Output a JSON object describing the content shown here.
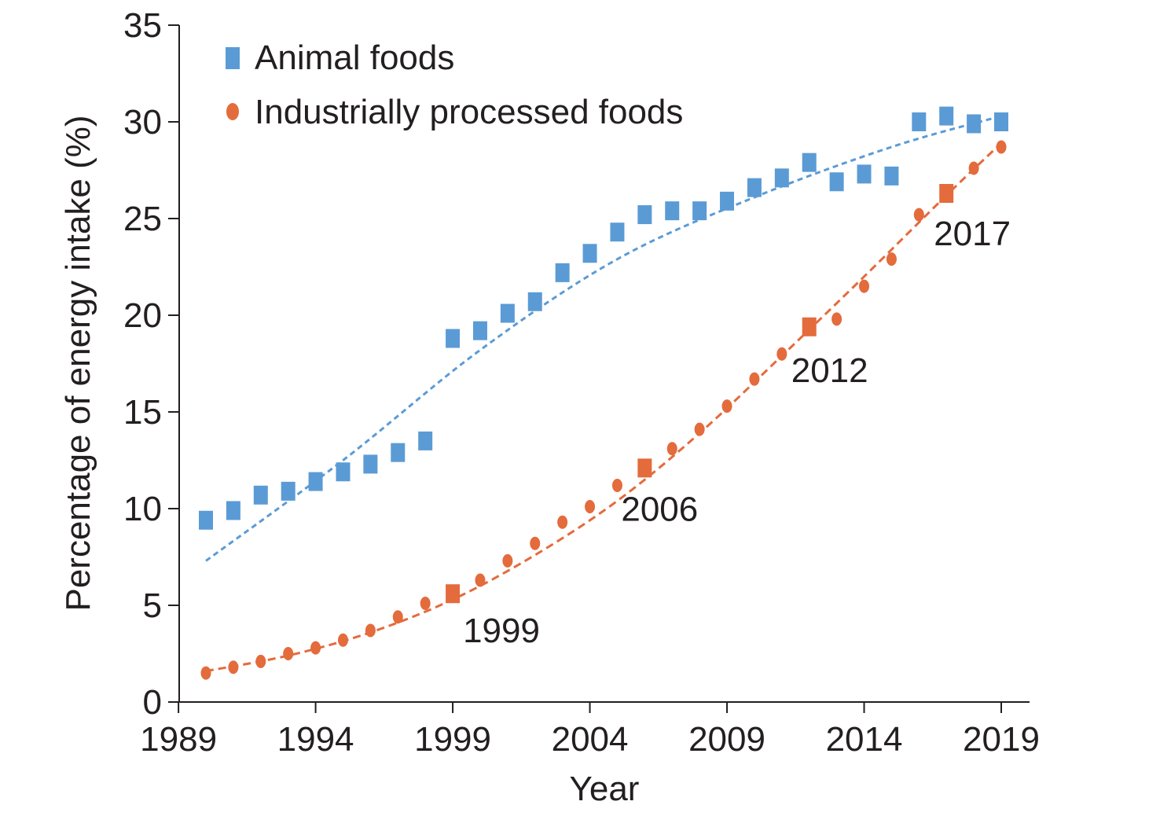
{
  "chart_data": {
    "type": "scatter",
    "xlabel": "Year",
    "ylabel": "Percentage of energy intake (%)",
    "xlim": [
      1989,
      2020
    ],
    "ylim": [
      0,
      35
    ],
    "x_ticks": [
      1989,
      1994,
      1999,
      2004,
      2009,
      2014,
      2019
    ],
    "y_ticks": [
      0,
      5,
      10,
      15,
      20,
      25,
      30,
      35
    ],
    "grid": false,
    "legend_position": "top-left",
    "series": [
      {
        "name": "Animal foods",
        "marker": "square",
        "color": "#5b9bd5",
        "x": [
          1990,
          1991,
          1992,
          1993,
          1994,
          1995,
          1996,
          1997,
          1998,
          1999,
          2000,
          2001,
          2002,
          2003,
          2004,
          2005,
          2006,
          2007,
          2008,
          2009,
          2010,
          2011,
          2012,
          2013,
          2014,
          2015,
          2016,
          2017,
          2018,
          2019
        ],
        "y": [
          9.4,
          9.9,
          10.7,
          10.9,
          11.4,
          11.9,
          12.3,
          12.9,
          13.5,
          18.8,
          19.2,
          20.1,
          20.7,
          22.2,
          23.2,
          24.3,
          25.2,
          25.4,
          25.4,
          25.9,
          26.6,
          27.1,
          27.9,
          26.9,
          27.3,
          27.2,
          30.0,
          30.3,
          29.9,
          30.0
        ],
        "trend": {
          "style": "dotted",
          "x": [
            1990,
            1995,
            2000,
            2005,
            2010,
            2015,
            2019
          ],
          "y": [
            7.3,
            12.5,
            18.2,
            22.9,
            26.1,
            28.7,
            30.3
          ]
        }
      },
      {
        "name": "Industrially processed foods",
        "marker": "circle",
        "color": "#e46b3c",
        "x": [
          1990,
          1991,
          1992,
          1993,
          1994,
          1995,
          1996,
          1997,
          1998,
          2000,
          2001,
          2002,
          2003,
          2004,
          2005,
          2007,
          2008,
          2009,
          2010,
          2011,
          2013,
          2014,
          2015,
          2016,
          2018,
          2019
        ],
        "y": [
          1.5,
          1.8,
          2.1,
          2.5,
          2.8,
          3.2,
          3.7,
          4.4,
          5.1,
          6.3,
          7.3,
          8.2,
          9.3,
          10.1,
          11.2,
          13.1,
          14.1,
          15.3,
          16.7,
          18.0,
          19.8,
          21.5,
          22.9,
          25.2,
          27.6,
          28.7
        ],
        "highlighted": [
          {
            "x": 1999,
            "y": 5.6,
            "label": "1999"
          },
          {
            "x": 2006,
            "y": 12.1,
            "label": "2006"
          },
          {
            "x": 2012,
            "y": 19.4,
            "label": "2012"
          },
          {
            "x": 2017,
            "y": 26.3,
            "label": "2017"
          }
        ],
        "trend": {
          "style": "dashed",
          "x": [
            1990,
            1993,
            1996,
            1999,
            2002,
            2005,
            2008,
            2011,
            2014,
            2017,
            2019
          ],
          "y": [
            1.6,
            2.4,
            3.6,
            5.3,
            7.6,
            10.4,
            13.9,
            17.9,
            22.0,
            26.2,
            28.9
          ]
        }
      }
    ]
  }
}
